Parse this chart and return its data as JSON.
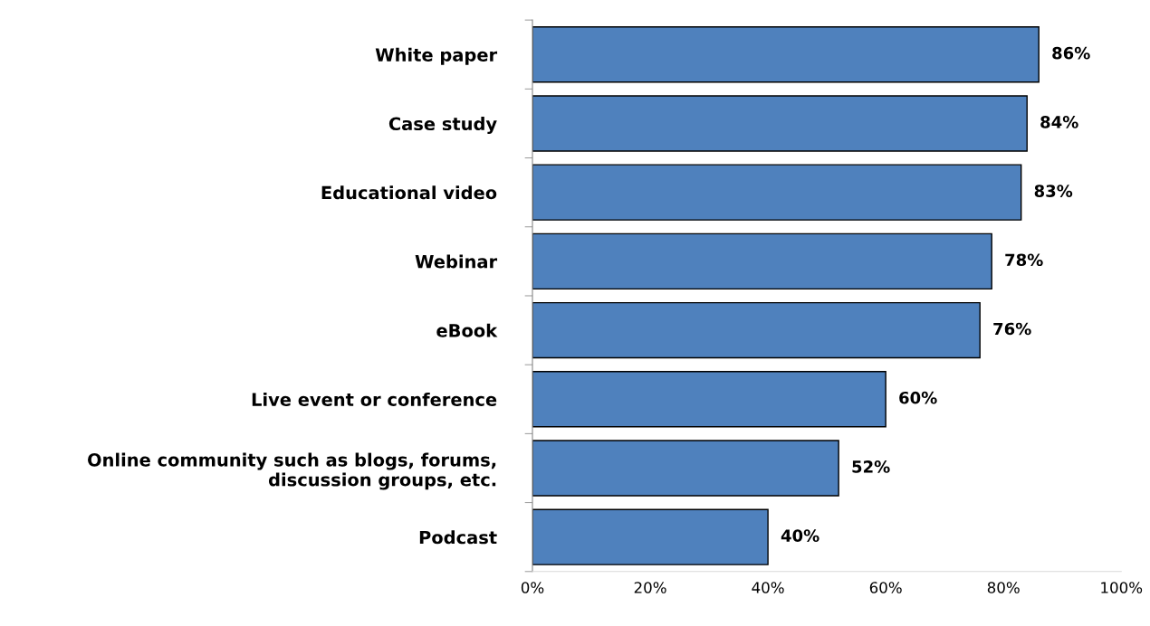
{
  "chart_data": {
    "type": "bar",
    "orientation": "horizontal",
    "categories": [
      "White paper",
      "Case study",
      "Educational video",
      "Webinar",
      "eBook",
      "Live event or conference",
      "Online community such as blogs, forums,\ndiscussion groups, etc.",
      "Podcast"
    ],
    "values": [
      86,
      84,
      83,
      78,
      76,
      60,
      52,
      40
    ],
    "value_labels": [
      "86%",
      "84%",
      "83%",
      "78%",
      "76%",
      "60%",
      "52%",
      "40%"
    ],
    "color": "#4f81bd",
    "xlim": [
      0,
      100
    ],
    "xticks": [
      {
        "value": 0,
        "label": "0%"
      },
      {
        "value": 20,
        "label": "20%"
      },
      {
        "value": 40,
        "label": "40%"
      },
      {
        "value": 60,
        "label": "60%"
      },
      {
        "value": 80,
        "label": "80%"
      },
      {
        "value": 100,
        "label": "100%"
      }
    ],
    "grid": false,
    "legend": false
  }
}
